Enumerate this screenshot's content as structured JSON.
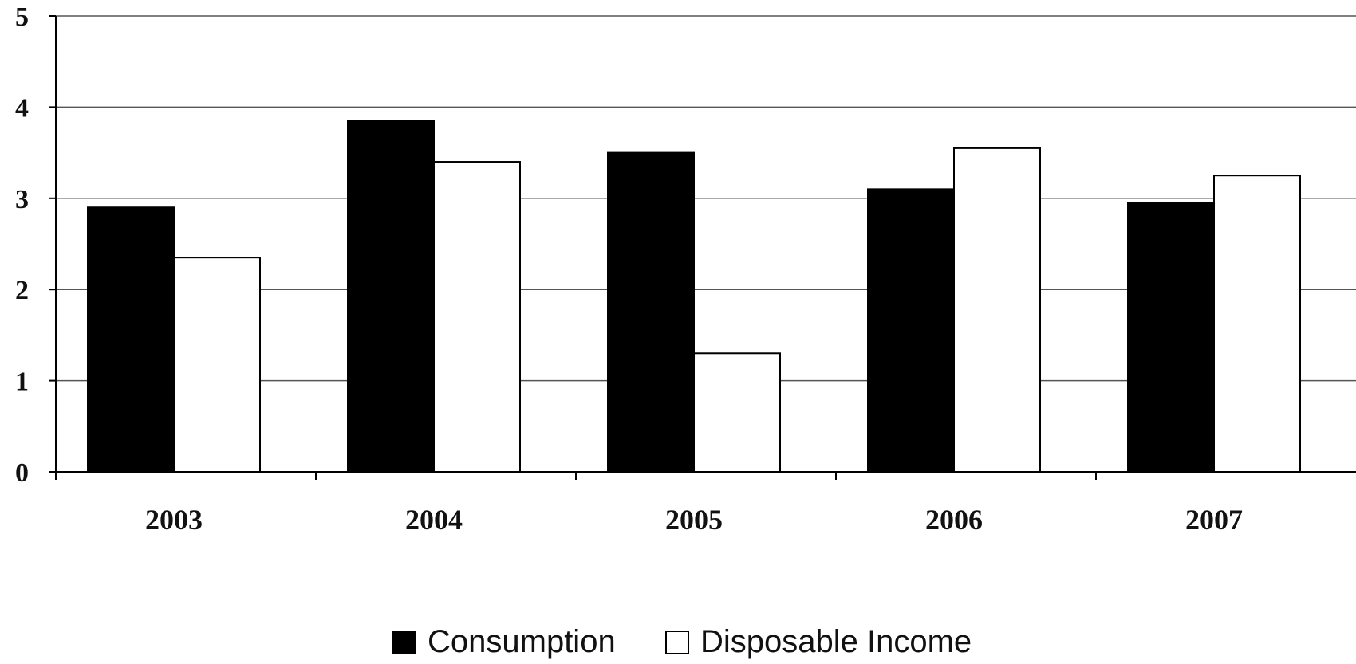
{
  "chart_data": {
    "type": "bar",
    "title": "",
    "xlabel": "",
    "ylabel": "",
    "ylim": [
      0,
      5
    ],
    "yticks": [
      "0",
      "1",
      "2",
      "3",
      "4",
      "5"
    ],
    "categories": [
      "2003",
      "2004",
      "2005",
      "2006",
      "2007"
    ],
    "series": [
      {
        "name": "Consumption",
        "values": [
          2.9,
          3.85,
          3.5,
          3.1,
          2.95
        ]
      },
      {
        "name": "Disposable Income",
        "values": [
          2.35,
          3.4,
          1.3,
          3.55,
          3.25
        ]
      }
    ],
    "grid": true,
    "legend_position": "bottom",
    "colors": {
      "series": [
        "#000000",
        "#ffffff"
      ],
      "bar_outline": "#000000",
      "axis": "#000000",
      "grid": "#555555",
      "background": "#ffffff"
    }
  }
}
